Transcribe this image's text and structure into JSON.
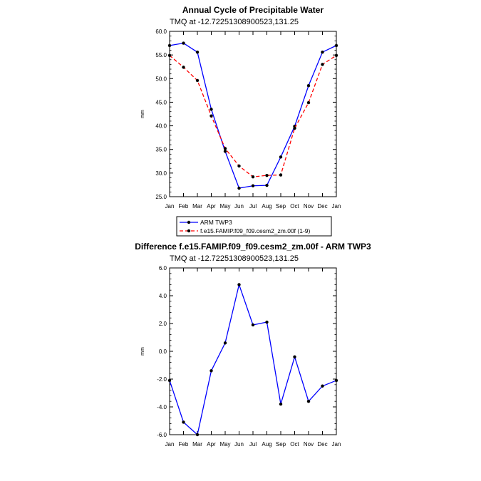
{
  "chart_data": [
    {
      "type": "line",
      "title": "Annual Cycle of Precipitable Water",
      "subtitle": "TMQ at -12.72251308900523,131.25",
      "xlabel": "",
      "ylabel": "mm",
      "categories": [
        "Jan",
        "Feb",
        "Mar",
        "Apr",
        "May",
        "Jun",
        "Jul",
        "Aug",
        "Sep",
        "Oct",
        "Nov",
        "Dec",
        "Jan"
      ],
      "ylim": [
        25.0,
        60.0
      ],
      "yticks": [
        "25.0",
        "30.0",
        "35.0",
        "40.0",
        "45.0",
        "50.0",
        "55.0",
        "60.0"
      ],
      "series": [
        {
          "name": "ARM TWP3",
          "color": "#0000ff",
          "style": "solid",
          "values": [
            57.0,
            57.5,
            55.6,
            43.5,
            34.6,
            26.8,
            27.3,
            27.4,
            33.4,
            39.9,
            48.5,
            55.6,
            57.0
          ]
        },
        {
          "name": "f.e15.FAMIP.f09_f09.cesm2_zm.00f (1-9)",
          "color": "#ff0000",
          "style": "dashed",
          "values": [
            54.9,
            52.4,
            49.6,
            42.1,
            35.2,
            31.5,
            29.2,
            29.5,
            29.6,
            39.5,
            44.9,
            53.0,
            54.9
          ]
        }
      ]
    },
    {
      "type": "line",
      "title": "Difference f.e15.FAMIP.f09_f09.cesm2_zm.00f - ARM TWP3",
      "subtitle": "TMQ at -12.72251308900523,131.25",
      "xlabel": "",
      "ylabel": "mm",
      "categories": [
        "Jan",
        "Feb",
        "Mar",
        "Apr",
        "May",
        "Jun",
        "Jul",
        "Aug",
        "Sep",
        "Oct",
        "Nov",
        "Dec",
        "Jan"
      ],
      "ylim": [
        -6.0,
        6.0
      ],
      "yticks": [
        "-6.0",
        "-4.0",
        "-2.0",
        "0.0",
        "2.0",
        "4.0",
        "6.0"
      ],
      "series": [
        {
          "name": "Difference",
          "color": "#0000ff",
          "style": "solid",
          "values": [
            -2.1,
            -5.1,
            -6.0,
            -1.4,
            0.6,
            4.8,
            1.9,
            2.1,
            -3.8,
            -0.4,
            -3.6,
            -2.5,
            -2.1
          ]
        }
      ]
    }
  ]
}
